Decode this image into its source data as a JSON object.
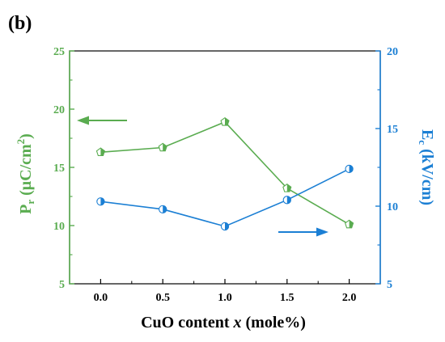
{
  "panel_label": "(b)",
  "colors": {
    "left_axis": "#5aac50",
    "right_axis": "#1b7fd4",
    "frame": "#000000"
  },
  "chart_data": {
    "type": "line",
    "x": [
      0.0,
      0.5,
      1.0,
      1.5,
      2.0
    ],
    "x_tick_labels": [
      "0.0",
      "0.5",
      "1.0",
      "1.5",
      "2.0"
    ],
    "xlim": [
      -0.25,
      2.25
    ],
    "xlabel": {
      "prefix": "CuO content ",
      "var": "x",
      "suffix": " (mole%)"
    },
    "y_left": {
      "label": {
        "main": "P",
        "sub": "r",
        "unit_open": " (μC/cm",
        "sup": "2",
        "unit_close": ")"
      },
      "lim": [
        5,
        25
      ],
      "ticks": [
        5,
        10,
        15,
        20,
        25
      ],
      "tick_labels": [
        "5",
        "10",
        "15",
        "20",
        "25"
      ]
    },
    "y_right": {
      "label": {
        "main": "E",
        "sub": "c",
        "unit": " (kV/cm)"
      },
      "lim": [
        5,
        20
      ],
      "ticks": [
        5,
        10,
        15,
        20
      ],
      "tick_labels": [
        "5",
        "10",
        "15",
        "20"
      ]
    },
    "series": [
      {
        "axis": "left",
        "color": "#5aac50",
        "marker": "pentagon-half",
        "values": [
          16.3,
          16.7,
          18.9,
          13.2,
          10.1
        ]
      },
      {
        "axis": "right",
        "color": "#1b7fd4",
        "marker": "circle-half",
        "values": [
          10.3,
          9.8,
          8.7,
          10.4,
          12.4
        ]
      }
    ],
    "annotations": [
      {
        "type": "arrow",
        "direction": "left",
        "color": "#5aac50",
        "points_to": "left axis"
      },
      {
        "type": "arrow",
        "direction": "right",
        "color": "#1b7fd4",
        "points_to": "right axis"
      }
    ],
    "grid": false,
    "legend": "none"
  }
}
